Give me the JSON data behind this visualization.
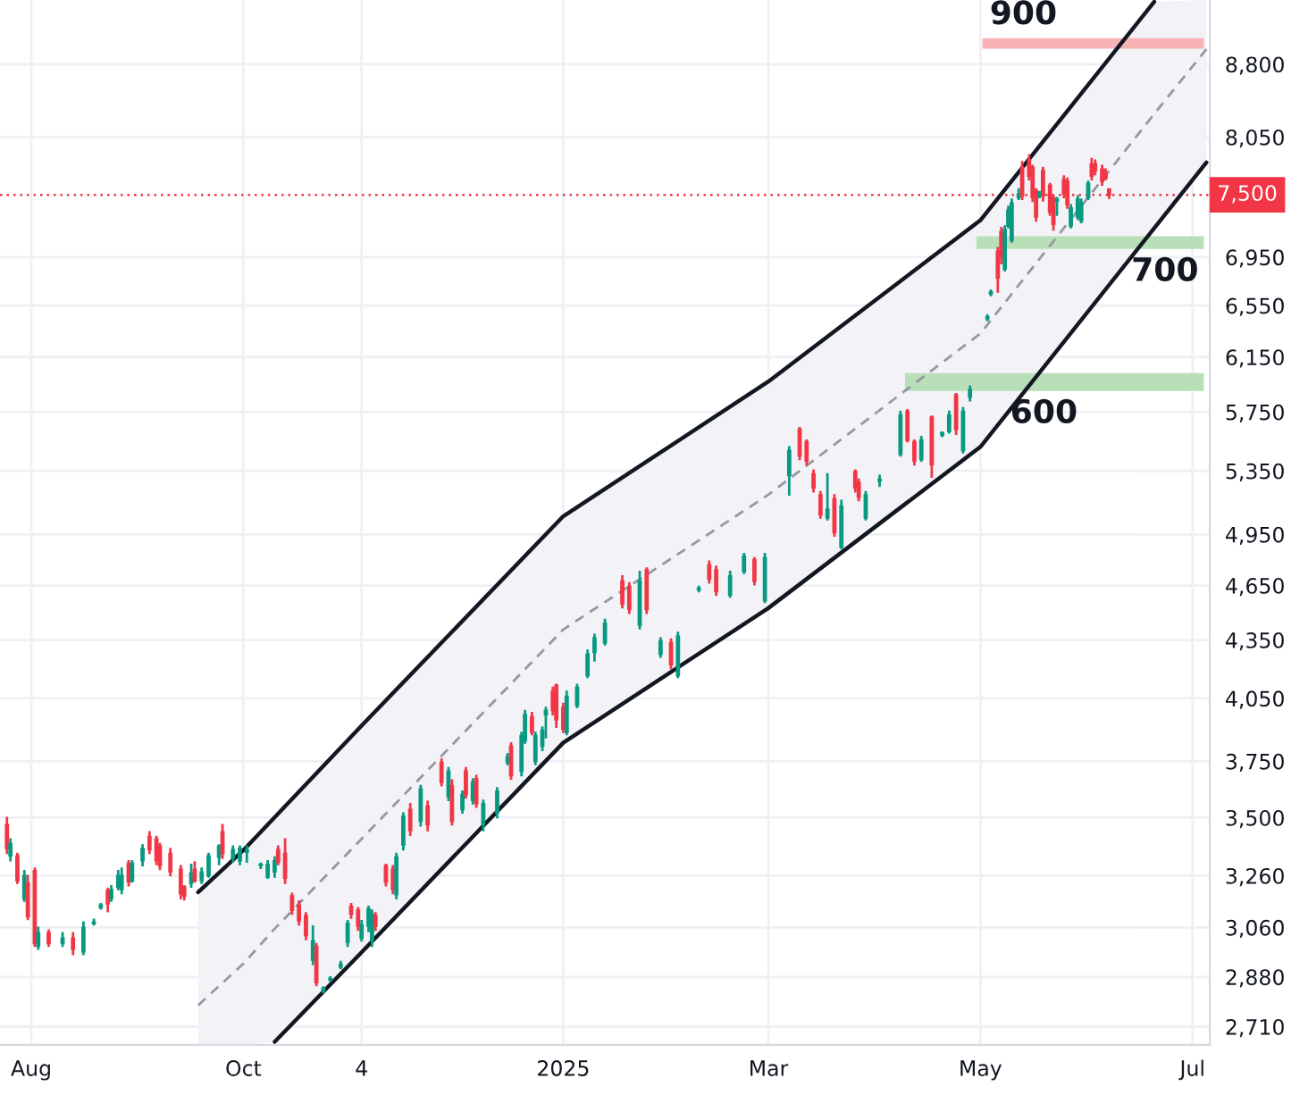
{
  "chart_data": {
    "type": "candlestick",
    "x": [
      "2024-07-25",
      "2024-07-26",
      "2024-07-28",
      "2024-07-30",
      "2024-07-31",
      "2024-08-02",
      "2024-08-03",
      "2024-08-06",
      "2024-08-10",
      "2024-08-13",
      "2024-08-16",
      "2024-08-19",
      "2024-08-21",
      "2024-08-23",
      "2024-08-24",
      "2024-08-26",
      "2024-08-27",
      "2024-08-29",
      "2024-08-30",
      "2024-09-02",
      "2024-09-04",
      "2024-09-06",
      "2024-09-07",
      "2024-09-10",
      "2024-09-13",
      "2024-09-14",
      "2024-09-16",
      "2024-09-17",
      "2024-09-19",
      "2024-09-21",
      "2024-09-24",
      "2024-09-25",
      "2024-09-28",
      "2024-09-30",
      "2024-10-02",
      "2024-10-06",
      "2024-10-08",
      "2024-10-10",
      "2024-10-11",
      "2024-10-13",
      "2024-10-15",
      "2024-10-17",
      "2024-10-19",
      "2024-10-21",
      "2024-10-22",
      "2024-10-24",
      "2024-10-26",
      "2024-10-29",
      "2024-10-31",
      "2024-11-01",
      "2024-11-03",
      "2024-11-04",
      "2024-11-06",
      "2024-11-07",
      "2024-11-08",
      "2024-11-11",
      "2024-11-13",
      "2024-11-14",
      "2024-11-16",
      "2024-11-18",
      "2024-11-21",
      "2024-11-23",
      "2024-11-27",
      "2024-11-29",
      "2024-11-30",
      "2024-12-03",
      "2024-12-04",
      "2024-12-06",
      "2024-12-07",
      "2024-12-09",
      "2024-12-13",
      "2024-12-16",
      "2024-12-17",
      "2024-12-20",
      "2024-12-21",
      "2024-12-23",
      "2024-12-24",
      "2024-12-26",
      "2024-12-27",
      "2024-12-29",
      "2024-12-30",
      "2025-01-01",
      "2025-01-02",
      "2025-01-05",
      "2025-01-08",
      "2025-01-10",
      "2025-01-13",
      "2025-01-18",
      "2025-01-20",
      "2025-01-23",
      "2025-01-25",
      "2025-01-29",
      "2025-02-01",
      "2025-02-03",
      "2025-02-09",
      "2025-02-12",
      "2025-02-14",
      "2025-02-18",
      "2025-02-22",
      "2025-02-25",
      "2025-02-28",
      "2025-03-07",
      "2025-03-10",
      "2025-03-12",
      "2025-03-14",
      "2025-03-16",
      "2025-03-18",
      "2025-03-20",
      "2025-03-22",
      "2025-03-26",
      "2025-03-27",
      "2025-03-29",
      "2025-04-02",
      "2025-04-08",
      "2025-04-10",
      "2025-04-12",
      "2025-04-14",
      "2025-04-17",
      "2025-04-20",
      "2025-04-22",
      "2025-04-24",
      "2025-04-26",
      "2025-04-28",
      "2025-05-03",
      "2025-05-04",
      "2025-05-06",
      "2025-05-07",
      "2025-05-08",
      "2025-05-09",
      "2025-05-10",
      "2025-05-12",
      "2025-05-13",
      "2025-05-15",
      "2025-05-16",
      "2025-05-17",
      "2025-05-18",
      "2025-05-19",
      "2025-05-21",
      "2025-05-22",
      "2025-05-23",
      "2025-05-25",
      "2025-05-26",
      "2025-05-27",
      "2025-05-29",
      "2025-05-30",
      "2025-06-01",
      "2025-06-02",
      "2025-06-03",
      "2025-06-05",
      "2025-06-06",
      "2025-06-07"
    ],
    "ohlc": [
      [
        3470,
        3500,
        3350,
        3370
      ],
      [
        3340,
        3410,
        3320,
        3390
      ],
      [
        3340,
        3350,
        3230,
        3240
      ],
      [
        3170,
        3280,
        3160,
        3260
      ],
      [
        3230,
        3260,
        3090,
        3100
      ],
      [
        3280,
        3290,
        2990,
        3000
      ],
      [
        2990,
        3060,
        2980,
        3040
      ],
      [
        3040,
        3050,
        2990,
        3000
      ],
      [
        3000,
        3040,
        2990,
        3020
      ],
      [
        3020,
        3040,
        2960,
        2980
      ],
      [
        2970,
        3080,
        2960,
        3060
      ],
      [
        3075,
        3090,
        3070,
        3080
      ],
      [
        3135,
        3150,
        3130,
        3145
      ],
      [
        3200,
        3210,
        3120,
        3150
      ],
      [
        3170,
        3220,
        3160,
        3205
      ],
      [
        3215,
        3280,
        3205,
        3260
      ],
      [
        3205,
        3290,
        3190,
        3260
      ],
      [
        3310,
        3320,
        3220,
        3235
      ],
      [
        3240,
        3320,
        3235,
        3310
      ],
      [
        3320,
        3385,
        3300,
        3370
      ],
      [
        3420,
        3440,
        3350,
        3365
      ],
      [
        3410,
        3420,
        3305,
        3320
      ],
      [
        3380,
        3390,
        3285,
        3300
      ],
      [
        3350,
        3370,
        3260,
        3275
      ],
      [
        3285,
        3300,
        3170,
        3190
      ],
      [
        3215,
        3220,
        3165,
        3180
      ],
      [
        3230,
        3305,
        3215,
        3270
      ],
      [
        3285,
        3315,
        3235,
        3240
      ],
      [
        3240,
        3290,
        3230,
        3275
      ],
      [
        3260,
        3350,
        3255,
        3340
      ],
      [
        3335,
        3385,
        3305,
        3380
      ],
      [
        3440,
        3470,
        3330,
        3350
      ],
      [
        3330,
        3380,
        3315,
        3365
      ],
      [
        3320,
        3380,
        3305,
        3370
      ],
      [
        3355,
        3380,
        3315,
        3365
      ],
      [
        3300,
        3310,
        3290,
        3305
      ],
      [
        3255,
        3320,
        3250,
        3305
      ],
      [
        3275,
        3335,
        3255,
        3320
      ],
      [
        3365,
        3380,
        3305,
        3315
      ],
      [
        3350,
        3410,
        3230,
        3250
      ],
      [
        3180,
        3190,
        3110,
        3125
      ],
      [
        3145,
        3160,
        3070,
        3085
      ],
      [
        3105,
        3115,
        3015,
        3030
      ],
      [
        2940,
        3065,
        2925,
        3010
      ],
      [
        2990,
        3000,
        2850,
        2860
      ],
      [
        2830,
        2845,
        2825,
        2840
      ],
      [
        2870,
        2880,
        2865,
        2875
      ],
      [
        2915,
        2935,
        2910,
        2925
      ],
      [
        3005,
        3085,
        2990,
        3075
      ],
      [
        3140,
        3150,
        3095,
        3110
      ],
      [
        3125,
        3135,
        3050,
        3065
      ],
      [
        3020,
        3085,
        3010,
        3070
      ],
      [
        3065,
        3140,
        3045,
        3130
      ],
      [
        3010,
        3125,
        2990,
        3110
      ],
      [
        3105,
        3115,
        3050,
        3065
      ],
      [
        3300,
        3305,
        3220,
        3235
      ],
      [
        3285,
        3300,
        3190,
        3205
      ],
      [
        3185,
        3350,
        3170,
        3335
      ],
      [
        3385,
        3520,
        3365,
        3505
      ],
      [
        3535,
        3560,
        3425,
        3445
      ],
      [
        3485,
        3640,
        3465,
        3625
      ],
      [
        3550,
        3570,
        3445,
        3470
      ],
      [
        3745,
        3760,
        3640,
        3655
      ],
      [
        3590,
        3720,
        3575,
        3705
      ],
      [
        3640,
        3665,
        3470,
        3485
      ],
      [
        3535,
        3615,
        3520,
        3600
      ],
      [
        3705,
        3720,
        3585,
        3600
      ],
      [
        3575,
        3670,
        3560,
        3655
      ],
      [
        3670,
        3685,
        3545,
        3560
      ],
      [
        3470,
        3575,
        3445,
        3560
      ],
      [
        3520,
        3630,
        3500,
        3615
      ],
      [
        3745,
        3785,
        3735,
        3770
      ],
      [
        3820,
        3835,
        3670,
        3685
      ],
      [
        3705,
        3885,
        3685,
        3870
      ],
      [
        3845,
        3990,
        3835,
        3970
      ],
      [
        3960,
        3980,
        3875,
        3885
      ],
      [
        3750,
        3885,
        3735,
        3870
      ],
      [
        3820,
        3910,
        3800,
        3895
      ],
      [
        3970,
        4005,
        3860,
        3990
      ],
      [
        4085,
        4105,
        3970,
        3990
      ],
      [
        4115,
        4120,
        3910,
        3945
      ],
      [
        4005,
        4025,
        3885,
        3900
      ],
      [
        3885,
        4085,
        3875,
        4060
      ],
      [
        4015,
        4120,
        4005,
        4105
      ],
      [
        4165,
        4295,
        4155,
        4275
      ],
      [
        4285,
        4380,
        4240,
        4360
      ],
      [
        4335,
        4460,
        4325,
        4440
      ],
      [
        4675,
        4705,
        4525,
        4545
      ],
      [
        4645,
        4665,
        4495,
        4515
      ],
      [
        4430,
        4730,
        4410,
        4675
      ],
      [
        4740,
        4750,
        4495,
        4515
      ],
      [
        4275,
        4360,
        4260,
        4345
      ],
      [
        4335,
        4355,
        4200,
        4220
      ],
      [
        4165,
        4390,
        4155,
        4370
      ],
      [
        4625,
        4645,
        4615,
        4635
      ],
      [
        4770,
        4790,
        4665,
        4685
      ],
      [
        4740,
        4760,
        4595,
        4615
      ],
      [
        4595,
        4730,
        4585,
        4705
      ],
      [
        4730,
        4835,
        4720,
        4820
      ],
      [
        4800,
        4810,
        4655,
        4675
      ],
      [
        4565,
        4835,
        4555,
        4810
      ],
      [
        5320,
        5510,
        5195,
        5485
      ],
      [
        5630,
        5640,
        5425,
        5450
      ],
      [
        5545,
        5555,
        5390,
        5415
      ],
      [
        5330,
        5355,
        5215,
        5240
      ],
      [
        5195,
        5215,
        5050,
        5070
      ],
      [
        5050,
        5330,
        5040,
        5105
      ],
      [
        5170,
        5195,
        4940,
        4960
      ],
      [
        4875,
        5160,
        4865,
        5125
      ],
      [
        5345,
        5355,
        5215,
        5240
      ],
      [
        5275,
        5295,
        5160,
        5180
      ],
      [
        5050,
        5215,
        5040,
        5195
      ],
      [
        5285,
        5320,
        5250,
        5295
      ],
      [
        5460,
        5755,
        5450,
        5730
      ],
      [
        5755,
        5765,
        5545,
        5555
      ],
      [
        5545,
        5555,
        5390,
        5415
      ],
      [
        5425,
        5580,
        5415,
        5555
      ],
      [
        5715,
        5720,
        5310,
        5390
      ],
      [
        5590,
        5610,
        5580,
        5605
      ],
      [
        5615,
        5755,
        5605,
        5730
      ],
      [
        5870,
        5880,
        5595,
        5630
      ],
      [
        5485,
        5780,
        5470,
        5755
      ],
      [
        5855,
        5935,
        5830,
        5910
      ],
      [
        6445,
        6475,
        6430,
        6460
      ],
      [
        6645,
        6675,
        6630,
        6660
      ],
      [
        7000,
        7030,
        6660,
        6775
      ],
      [
        7170,
        7205,
        6895,
        6955
      ],
      [
        6850,
        7220,
        6835,
        7190
      ],
      [
        7220,
        7395,
        7205,
        7360
      ],
      [
        7095,
        7460,
        7080,
        7425
      ],
      [
        7475,
        7555,
        7460,
        7510
      ],
      [
        7755,
        7810,
        7460,
        7490
      ],
      [
        7825,
        7875,
        7640,
        7675
      ],
      [
        7755,
        7775,
        7440,
        7475
      ],
      [
        7540,
        7555,
        7265,
        7300
      ],
      [
        7490,
        7530,
        7475,
        7525
      ],
      [
        7725,
        7755,
        7445,
        7490
      ],
      [
        7590,
        7605,
        7315,
        7345
      ],
      [
        7475,
        7490,
        7185,
        7235
      ],
      [
        7445,
        7475,
        7315,
        7460
      ],
      [
        7640,
        7675,
        7475,
        7510
      ],
      [
        7625,
        7655,
        7380,
        7410
      ],
      [
        7220,
        7410,
        7205,
        7380
      ],
      [
        7300,
        7490,
        7280,
        7460
      ],
      [
        7265,
        7460,
        7250,
        7425
      ],
      [
        7475,
        7625,
        7460,
        7605
      ],
      [
        7790,
        7840,
        7640,
        7675
      ],
      [
        7790,
        7825,
        7690,
        7725
      ],
      [
        7740,
        7775,
        7590,
        7625
      ],
      [
        7705,
        7740,
        7640,
        7655
      ],
      [
        7555,
        7555,
        7470,
        7500
      ]
    ],
    "series": [
      {
        "type": "line",
        "color": "#131722",
        "line_style": "solid",
        "x": [
          "2024-09-18",
          "2024-10-01",
          "2024-11-04",
          "2025-01-01",
          "2025-03-01",
          "2025-05-01",
          "2025-06-20"
        ],
        "values": [
          3195,
          3363,
          3917,
          5061,
          5968,
          7271,
          9500
        ]
      },
      {
        "type": "line",
        "color": "#9598a1",
        "line_style": "dashed",
        "x": [
          "2024-09-18",
          "2024-10-01",
          "2024-10-10",
          "2024-11-04",
          "2025-01-01",
          "2025-03-01",
          "2025-05-01",
          "2025-06-20",
          "2025-07-05"
        ],
        "values": [
          2782,
          2927,
          3055,
          3410,
          4406,
          5196,
          6330,
          8282,
          8964
        ],
        "lower": [
          2650,
          2650,
          2660,
          2968,
          3836,
          4523,
          5510,
          7210,
          7803
        ],
        "upper": [
          3195,
          3363,
          3510,
          3917,
          5061,
          5968,
          7271,
          9500,
          9520
        ]
      },
      {
        "type": "line",
        "color": "#131722",
        "line_style": "solid",
        "x": [
          "2024-10-10",
          "2024-11-04",
          "2025-01-01",
          "2025-03-01",
          "2025-05-01",
          "2025-07-05"
        ],
        "values": [
          2660,
          2968,
          3836,
          4523,
          5510,
          7803
        ]
      }
    ],
    "log": "y",
    "ylim": [
      2650,
      9520
    ],
    "yticks": [
      {
        "value": 2710,
        "label": "2,710"
      },
      {
        "value": 2880,
        "label": "2,880"
      },
      {
        "value": 3060,
        "label": "3,060"
      },
      {
        "value": 3260,
        "label": "3,260"
      },
      {
        "value": 3500,
        "label": "3,500"
      },
      {
        "value": 3750,
        "label": "3,750"
      },
      {
        "value": 4050,
        "label": "4,050"
      },
      {
        "value": 4350,
        "label": "4,350"
      },
      {
        "value": 4650,
        "label": "4,650"
      },
      {
        "value": 4950,
        "label": "4,950"
      },
      {
        "value": 5350,
        "label": "5,350"
      },
      {
        "value": 5750,
        "label": "5,750"
      },
      {
        "value": 6150,
        "label": "6,150"
      },
      {
        "value": 6550,
        "label": "6,550"
      },
      {
        "value": 6950,
        "label": "6,950"
      },
      {
        "value": 8050,
        "label": "8,050"
      },
      {
        "value": 8800,
        "label": "8,800"
      }
    ],
    "xlim": [
      "2024-07-23",
      "2025-07-06"
    ],
    "xticks": [
      {
        "value": "2024-08-01",
        "label": "Aug"
      },
      {
        "value": "2024-10-01",
        "label": "Oct"
      },
      {
        "value": "2024-11-04",
        "label": "4"
      },
      {
        "value": "2025-01-01",
        "label": "2025"
      },
      {
        "value": "2025-03-01",
        "label": "Mar"
      },
      {
        "value": "2025-05-01",
        "label": "May"
      },
      {
        "value": "2025-07-01",
        "label": "Jul"
      }
    ],
    "grid": true,
    "ref_lines": [
      {
        "axis": "y",
        "value": 7500,
        "label": "7,500",
        "color": "#f23645",
        "line_style": "dotted"
      }
    ],
    "bands": [
      {
        "axis": "y",
        "from": 8970,
        "to": 9085,
        "label": "900",
        "color": "#f7b3b5"
      },
      {
        "axis": "y",
        "from": 7020,
        "to": 7130,
        "label": "700",
        "color": "#b9dfb9"
      },
      {
        "axis": "y",
        "from": 5900,
        "to": 6030,
        "label": "600",
        "color": "#b9dfb9"
      }
    ]
  }
}
